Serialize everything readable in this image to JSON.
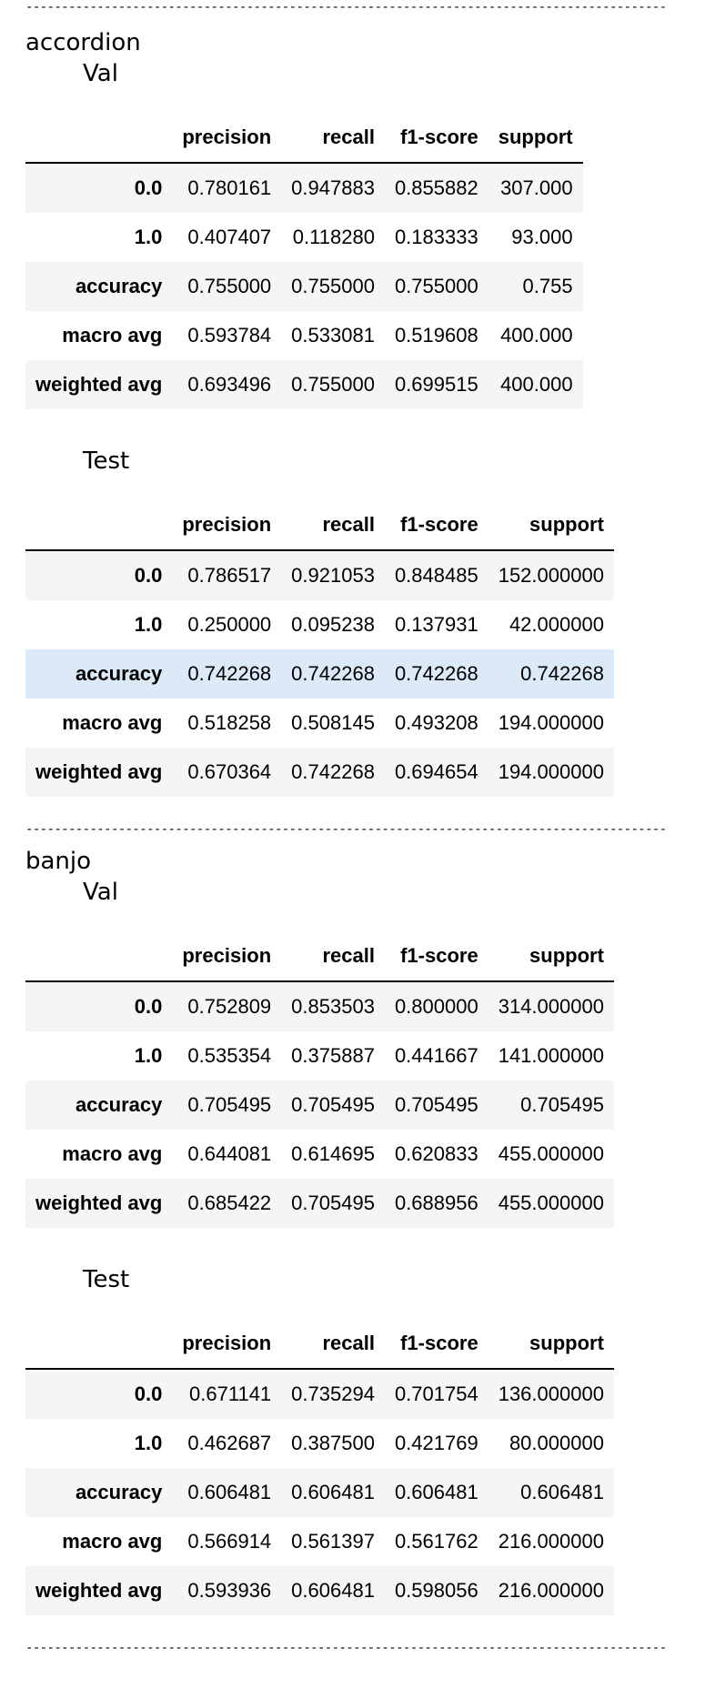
{
  "separator": "------------------------------------------------------------------------------------------",
  "columns": [
    "precision",
    "recall",
    "f1-score",
    "support"
  ],
  "sections": [
    {
      "instrument": "accordion",
      "reports": [
        {
          "split": "Val",
          "rows": [
            {
              "label": "0.0",
              "values": [
                "0.780161",
                "0.947883",
                "0.855882",
                "307.000"
              ]
            },
            {
              "label": "1.0",
              "values": [
                "0.407407",
                "0.118280",
                "0.183333",
                "93.000"
              ]
            },
            {
              "label": "accuracy",
              "values": [
                "0.755000",
                "0.755000",
                "0.755000",
                "0.755"
              ]
            },
            {
              "label": "macro avg",
              "values": [
                "0.593784",
                "0.533081",
                "0.519608",
                "400.000"
              ]
            },
            {
              "label": "weighted avg",
              "values": [
                "0.693496",
                "0.755000",
                "0.699515",
                "400.000"
              ]
            }
          ]
        },
        {
          "split": "Test",
          "rows": [
            {
              "label": "0.0",
              "values": [
                "0.786517",
                "0.921053",
                "0.848485",
                "152.000000"
              ]
            },
            {
              "label": "1.0",
              "values": [
                "0.250000",
                "0.095238",
                "0.137931",
                "42.000000"
              ]
            },
            {
              "label": "accuracy",
              "values": [
                "0.742268",
                "0.742268",
                "0.742268",
                "0.742268"
              ],
              "hovered": true
            },
            {
              "label": "macro avg",
              "values": [
                "0.518258",
                "0.508145",
                "0.493208",
                "194.000000"
              ]
            },
            {
              "label": "weighted avg",
              "values": [
                "0.670364",
                "0.742268",
                "0.694654",
                "194.000000"
              ]
            }
          ]
        }
      ]
    },
    {
      "instrument": "banjo",
      "reports": [
        {
          "split": "Val",
          "rows": [
            {
              "label": "0.0",
              "values": [
                "0.752809",
                "0.853503",
                "0.800000",
                "314.000000"
              ]
            },
            {
              "label": "1.0",
              "values": [
                "0.535354",
                "0.375887",
                "0.441667",
                "141.000000"
              ]
            },
            {
              "label": "accuracy",
              "values": [
                "0.705495",
                "0.705495",
                "0.705495",
                "0.705495"
              ]
            },
            {
              "label": "macro avg",
              "values": [
                "0.644081",
                "0.614695",
                "0.620833",
                "455.000000"
              ]
            },
            {
              "label": "weighted avg",
              "values": [
                "0.685422",
                "0.705495",
                "0.688956",
                "455.000000"
              ]
            }
          ]
        },
        {
          "split": "Test",
          "rows": [
            {
              "label": "0.0",
              "values": [
                "0.671141",
                "0.735294",
                "0.701754",
                "136.000000"
              ]
            },
            {
              "label": "1.0",
              "values": [
                "0.462687",
                "0.387500",
                "0.421769",
                "80.000000"
              ]
            },
            {
              "label": "accuracy",
              "values": [
                "0.606481",
                "0.606481",
                "0.606481",
                "0.606481"
              ]
            },
            {
              "label": "macro avg",
              "values": [
                "0.566914",
                "0.561397",
                "0.561762",
                "216.000000"
              ]
            },
            {
              "label": "weighted avg",
              "values": [
                "0.593936",
                "0.606481",
                "0.598056",
                "216.000000"
              ]
            }
          ]
        }
      ]
    }
  ]
}
